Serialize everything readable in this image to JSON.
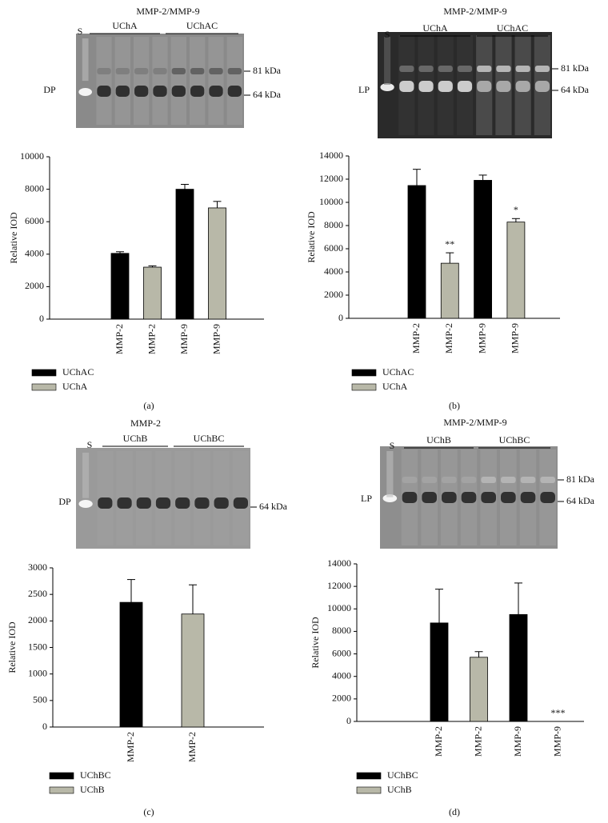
{
  "chart_data": [
    {
      "type": "bar",
      "panel": "(a)",
      "y_label": "Relative IOD",
      "gel": {
        "title": "MMP-2/MMP-9",
        "lane_label": "S",
        "groups": [
          "UChA",
          "UChAC"
        ],
        "markers": [
          "81 kDa",
          "64 kDa"
        ],
        "sample_label": "DP"
      },
      "categories": [
        "MMP-2",
        "MMP-2",
        "MMP-9",
        "MMP-9"
      ],
      "series": [
        {
          "name": "UChAC",
          "color": "#000000",
          "values": [
            4050,
            null,
            8000,
            null
          ],
          "errors": [
            100,
            null,
            300,
            null
          ]
        },
        {
          "name": "UChA",
          "color": "#b8b8a8",
          "values": [
            null,
            3200,
            null,
            6850
          ],
          "errors": [
            null,
            80,
            null,
            400
          ]
        }
      ],
      "ylim": [
        0,
        10000
      ],
      "yticks": [
        0,
        2000,
        4000,
        6000,
        8000,
        10000
      ],
      "annotations": []
    },
    {
      "type": "bar",
      "panel": "(b)",
      "y_label": "Relative IOD",
      "gel": {
        "title": "MMP-2/MMP-9",
        "lane_label": "S",
        "groups": [
          "UChA",
          "UChAC"
        ],
        "markers": [
          "81 kDa",
          "64 kDa"
        ],
        "sample_label": "LP"
      },
      "categories": [
        "MMP-2",
        "MMP-2",
        "MMP-9",
        "MMP-9"
      ],
      "series": [
        {
          "name": "UChAC",
          "color": "#000000",
          "values": [
            11450,
            null,
            11900,
            null
          ],
          "errors": [
            1400,
            null,
            450,
            null
          ]
        },
        {
          "name": "UChA",
          "color": "#b8b8a8",
          "values": [
            null,
            4750,
            null,
            8300
          ],
          "errors": [
            null,
            900,
            null,
            300
          ]
        }
      ],
      "ylim": [
        0,
        14000
      ],
      "yticks": [
        0,
        2000,
        4000,
        6000,
        8000,
        10000,
        12000,
        14000
      ],
      "annotations": [
        {
          "category": 1,
          "text": "**"
        },
        {
          "category": 3,
          "text": "*"
        }
      ]
    },
    {
      "type": "bar",
      "panel": "(c)",
      "y_label": "Relative IOD",
      "gel": {
        "title": "MMP-2",
        "lane_label": "S",
        "groups": [
          "UChB",
          "UChBC"
        ],
        "markers": [
          "64 kDa"
        ],
        "sample_label": "DP"
      },
      "categories": [
        "MMP-2",
        "MMP-2"
      ],
      "series": [
        {
          "name": "UChBC",
          "color": "#000000",
          "values": [
            2350,
            null
          ],
          "errors": [
            430,
            null
          ]
        },
        {
          "name": "UChB",
          "color": "#b8b8a8",
          "values": [
            null,
            2130
          ],
          "errors": [
            null,
            550
          ]
        }
      ],
      "ylim": [
        0,
        3000
      ],
      "yticks": [
        0,
        500,
        1000,
        1500,
        2000,
        2500,
        3000
      ],
      "annotations": []
    },
    {
      "type": "bar",
      "panel": "(d)",
      "y_label": "Relative IOD",
      "gel": {
        "title": "MMP-2/MMP-9",
        "lane_label": "S",
        "groups": [
          "UChB",
          "UChBC"
        ],
        "markers": [
          "81 kDa",
          "64 kDa"
        ],
        "sample_label": "LP"
      },
      "categories": [
        "MMP-2",
        "MMP-2",
        "MMP-9",
        "MMP-9"
      ],
      "series": [
        {
          "name": "UChBC",
          "color": "#000000",
          "values": [
            8750,
            null,
            9500,
            null
          ],
          "errors": [
            3000,
            null,
            2800,
            null
          ]
        },
        {
          "name": "UChB",
          "color": "#b8b8a8",
          "values": [
            null,
            5700,
            null,
            0
          ],
          "errors": [
            null,
            500,
            null,
            null
          ]
        }
      ],
      "ylim": [
        0,
        14000
      ],
      "yticks": [
        0,
        2000,
        4000,
        6000,
        8000,
        10000,
        12000,
        14000
      ],
      "annotations": [
        {
          "category": 3,
          "text": "***"
        }
      ]
    }
  ]
}
